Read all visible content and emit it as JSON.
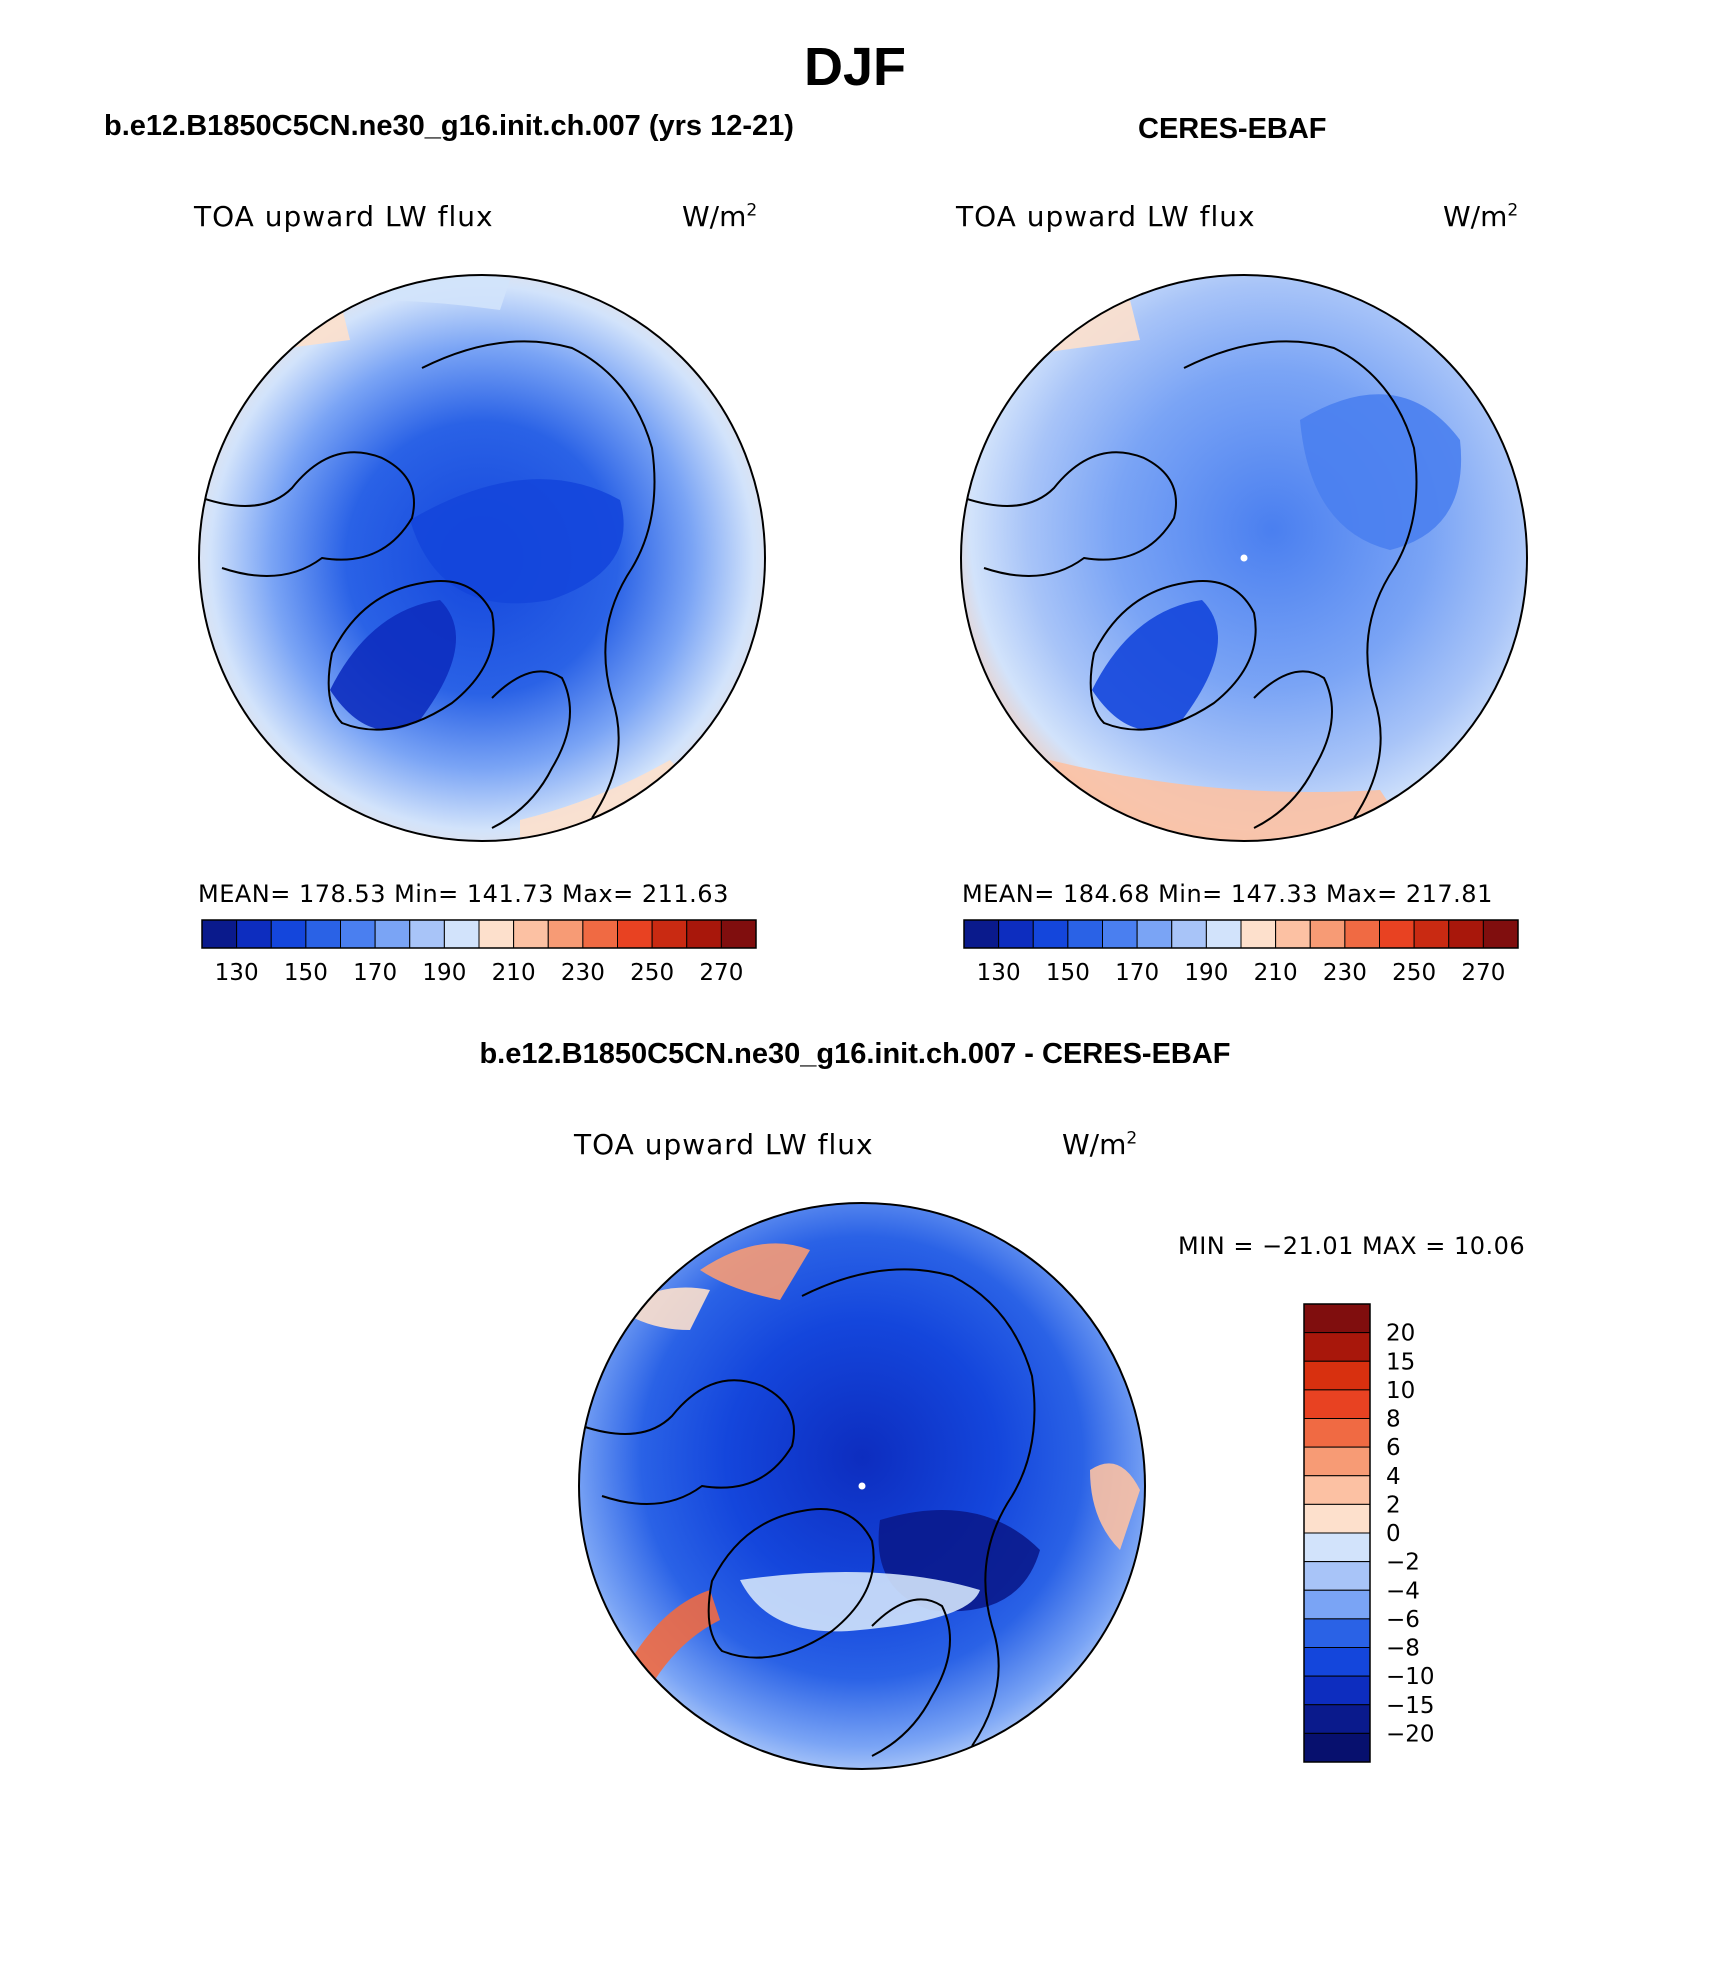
{
  "page": {
    "title": "DJF"
  },
  "panels": [
    {
      "id": "model",
      "title": "b.e12.B1850C5CN.ne30_g16.init.ch.007 (yrs 12-21)",
      "variable": "TOA upward LW flux",
      "units_base": "W/m",
      "units_exp": "2",
      "stats": "MEAN= 178.53   Min= 141.73   Max= 211.63"
    },
    {
      "id": "obs",
      "title": "CERES-EBAF",
      "variable": "TOA upward LW flux",
      "units_base": "W/m",
      "units_exp": "2",
      "stats": "MEAN= 184.68   Min= 147.33   Max= 217.81"
    },
    {
      "id": "diff",
      "title": "b.e12.B1850C5CN.ne30_g16.init.ch.007 - CERES-EBAF",
      "variable": "TOA upward LW flux",
      "units_base": "W/m",
      "units_exp": "2",
      "minmax": "MIN = −21.01 MAX =   10.06"
    }
  ],
  "chart_data": [
    {
      "type": "heatmap",
      "projection": "north polar stereographic",
      "panel": "model",
      "colorbar": {
        "orientation": "horizontal",
        "levels": [
          130,
          140,
          150,
          160,
          170,
          180,
          190,
          200,
          210,
          220,
          230,
          240,
          250,
          260,
          270
        ],
        "tick_labels": [
          "130",
          "150",
          "170",
          "190",
          "210",
          "230",
          "250",
          "270"
        ],
        "colors": [
          "#0a1a8c",
          "#0d2dbf",
          "#1446dc",
          "#2a62e6",
          "#4a7ff0",
          "#7aa4f5",
          "#a8c4f8",
          "#d2e3fb",
          "#fde0cc",
          "#fcc1a3",
          "#f79b75",
          "#f06a43",
          "#e84222",
          "#c92a12",
          "#a8170b",
          "#800e0e"
        ]
      },
      "stats": {
        "mean": 178.53,
        "min": 141.73,
        "max": 211.63
      }
    },
    {
      "type": "heatmap",
      "projection": "north polar stereographic",
      "panel": "obs",
      "colorbar": {
        "orientation": "horizontal",
        "levels": [
          130,
          140,
          150,
          160,
          170,
          180,
          190,
          200,
          210,
          220,
          230,
          240,
          250,
          260,
          270
        ],
        "tick_labels": [
          "130",
          "150",
          "170",
          "190",
          "210",
          "230",
          "250",
          "270"
        ],
        "colors": [
          "#0a1a8c",
          "#0d2dbf",
          "#1446dc",
          "#2a62e6",
          "#4a7ff0",
          "#7aa4f5",
          "#a8c4f8",
          "#d2e3fb",
          "#fde0cc",
          "#fcc1a3",
          "#f79b75",
          "#f06a43",
          "#e84222",
          "#c92a12",
          "#a8170b",
          "#800e0e"
        ]
      },
      "stats": {
        "mean": 184.68,
        "min": 147.33,
        "max": 217.81
      }
    },
    {
      "type": "heatmap",
      "projection": "north polar stereographic",
      "panel": "diff",
      "colorbar": {
        "orientation": "vertical",
        "tick_labels": [
          "20",
          "15",
          "10",
          "8",
          "6",
          "4",
          "2",
          "0",
          "−2",
          "−4",
          "−6",
          "−8",
          "−10",
          "−15",
          "−20"
        ],
        "colors": [
          "#800e0e",
          "#a8170b",
          "#d8300f",
          "#e84222",
          "#f06a43",
          "#f79b75",
          "#fcc1a3",
          "#fde0cc",
          "#d2e3fb",
          "#a8c4f8",
          "#7aa4f5",
          "#2a62e6",
          "#1446dc",
          "#0d2dbf",
          "#0a1a8c",
          "#07106e"
        ]
      },
      "stats": {
        "min": -21.01,
        "max": 10.06
      }
    }
  ]
}
